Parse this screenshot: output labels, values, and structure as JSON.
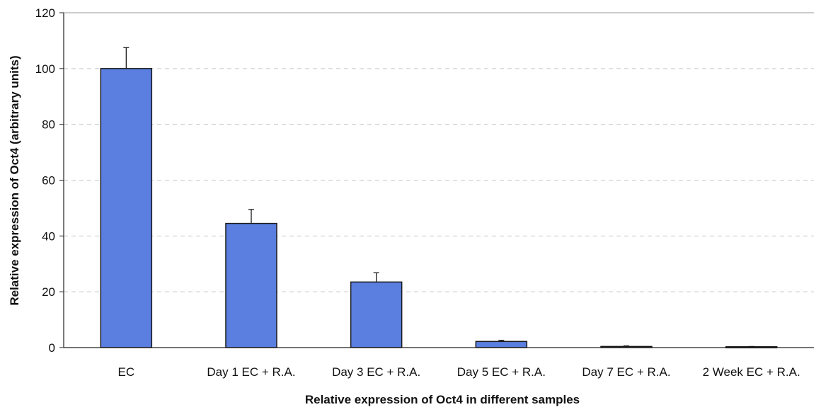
{
  "chart_data": {
    "type": "bar",
    "title": "",
    "xlabel": "Relative expression of Oct4 in different samples",
    "ylabel": "Relative expression of Oct4 (arbitrary units)",
    "categories": [
      "EC",
      "Day 1 EC + R.A.",
      "Day 3 EC + R.A.",
      "Day 5 EC + R.A.",
      "Day 7 EC + R.A.",
      "2 Week EC + R.A."
    ],
    "values": [
      100,
      44.5,
      23.5,
      2.2,
      0.4,
      0.3
    ],
    "error_bars": [
      7.5,
      5.0,
      3.3,
      0.4,
      0.2,
      0.1
    ],
    "ylim": [
      0,
      120
    ],
    "yticks": [
      0,
      20,
      40,
      60,
      80,
      100,
      120
    ],
    "grid": true,
    "legend": "none",
    "colors": {
      "bar_fill": "#5b7fe0",
      "bar_edge": "#1a1a1a",
      "grid": "#c8c8c8",
      "axis": "#222222"
    }
  }
}
